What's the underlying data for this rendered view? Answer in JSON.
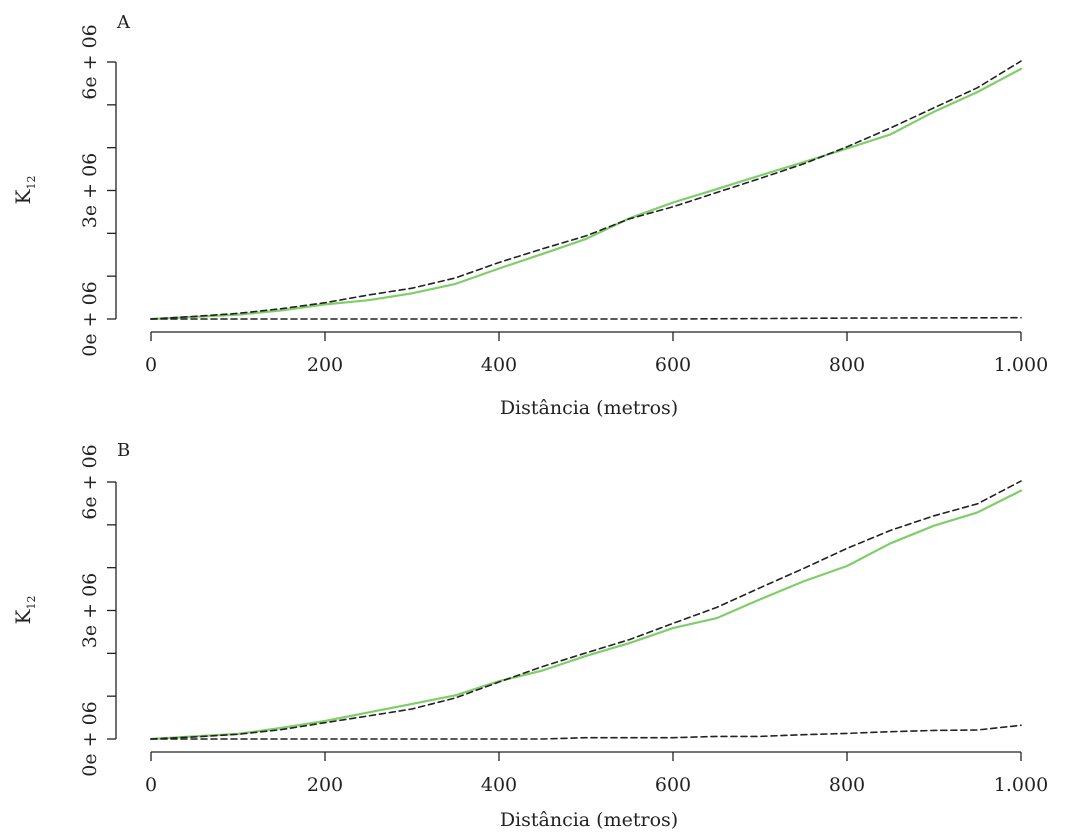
{
  "chart_data": [
    {
      "type": "line",
      "panel_label": "A",
      "xlabel": "Distância (metros)",
      "ylabel": "K",
      "ylabel_subscript": "12",
      "xlim": [
        0,
        1000
      ],
      "ylim": [
        0,
        6000000
      ],
      "x_ticks": [
        0,
        200,
        400,
        600,
        800,
        1000
      ],
      "x_tick_labels": [
        "0",
        "200",
        "400",
        "600",
        "800",
        "1.000"
      ],
      "y_ticks": [
        0,
        3000000,
        6000000
      ],
      "y_tick_labels": [
        "0e + 06",
        "3e + 06",
        "6e + 06"
      ],
      "y_minor_ticks": [
        1000000,
        2000000,
        4000000,
        5000000
      ],
      "series": [
        {
          "style": "solid",
          "color": "#7fce6a",
          "x": [
            0,
            50,
            100,
            150,
            200,
            250,
            300,
            350,
            400,
            450,
            500,
            550,
            600,
            650,
            700,
            750,
            800,
            850,
            900,
            950,
            1000
          ],
          "y": [
            0,
            50000,
            100000,
            200000,
            340000,
            440000,
            600000,
            820000,
            1180000,
            1520000,
            1870000,
            2350000,
            2720000,
            3030000,
            3350000,
            3660000,
            3980000,
            4310000,
            4840000,
            5300000,
            5840000
          ]
        },
        {
          "style": "dashed",
          "color": "#222222",
          "x": [
            0,
            50,
            100,
            150,
            200,
            250,
            300,
            350,
            400,
            450,
            500,
            550,
            600,
            650,
            700,
            750,
            800,
            850,
            900,
            950,
            1000
          ],
          "y": [
            0,
            60000,
            130000,
            240000,
            380000,
            560000,
            720000,
            960000,
            1320000,
            1640000,
            1940000,
            2340000,
            2620000,
            2950000,
            3280000,
            3620000,
            4020000,
            4460000,
            4930000,
            5400000,
            6020000
          ]
        },
        {
          "style": "dashed",
          "color": "#222222",
          "x": [
            0,
            200,
            400,
            600,
            800,
            1000
          ],
          "y": [
            0,
            0,
            0,
            0,
            20000,
            30000
          ]
        }
      ]
    },
    {
      "type": "line",
      "panel_label": "B",
      "xlabel": "Distância (metros)",
      "ylabel": "K",
      "ylabel_subscript": "12",
      "xlim": [
        0,
        1000
      ],
      "ylim": [
        0,
        6000000
      ],
      "x_ticks": [
        0,
        200,
        400,
        600,
        800,
        1000
      ],
      "x_tick_labels": [
        "0",
        "200",
        "400",
        "600",
        "800",
        "1.000"
      ],
      "y_ticks": [
        0,
        3000000,
        6000000
      ],
      "y_tick_labels": [
        "0e + 06",
        "3e + 06",
        "6e + 06"
      ],
      "y_minor_ticks": [
        1000000,
        2000000,
        4000000,
        5000000
      ],
      "series": [
        {
          "style": "solid",
          "color": "#7fce6a",
          "x": [
            0,
            50,
            100,
            150,
            200,
            250,
            300,
            350,
            400,
            450,
            500,
            550,
            600,
            650,
            700,
            750,
            800,
            850,
            900,
            950,
            1000
          ],
          "y": [
            0,
            60000,
            120000,
            260000,
            420000,
            620000,
            820000,
            1020000,
            1350000,
            1600000,
            1940000,
            2240000,
            2590000,
            2820000,
            3260000,
            3680000,
            4040000,
            4570000,
            4980000,
            5290000,
            5800000
          ]
        },
        {
          "style": "dashed",
          "color": "#222222",
          "x": [
            0,
            50,
            100,
            150,
            200,
            250,
            300,
            350,
            400,
            450,
            500,
            550,
            600,
            650,
            700,
            750,
            800,
            850,
            900,
            950,
            1000
          ],
          "y": [
            0,
            50000,
            110000,
            220000,
            380000,
            540000,
            700000,
            960000,
            1330000,
            1690000,
            2010000,
            2320000,
            2700000,
            3070000,
            3530000,
            3980000,
            4450000,
            4870000,
            5210000,
            5490000,
            6020000
          ]
        },
        {
          "style": "dashed",
          "color": "#222222",
          "x": [
            0,
            200,
            400,
            450,
            500,
            600,
            650,
            700,
            750,
            800,
            850,
            900,
            950,
            1000
          ],
          "y": [
            0,
            0,
            0,
            0,
            30000,
            30000,
            60000,
            60000,
            100000,
            130000,
            170000,
            200000,
            210000,
            320000
          ]
        }
      ]
    }
  ]
}
